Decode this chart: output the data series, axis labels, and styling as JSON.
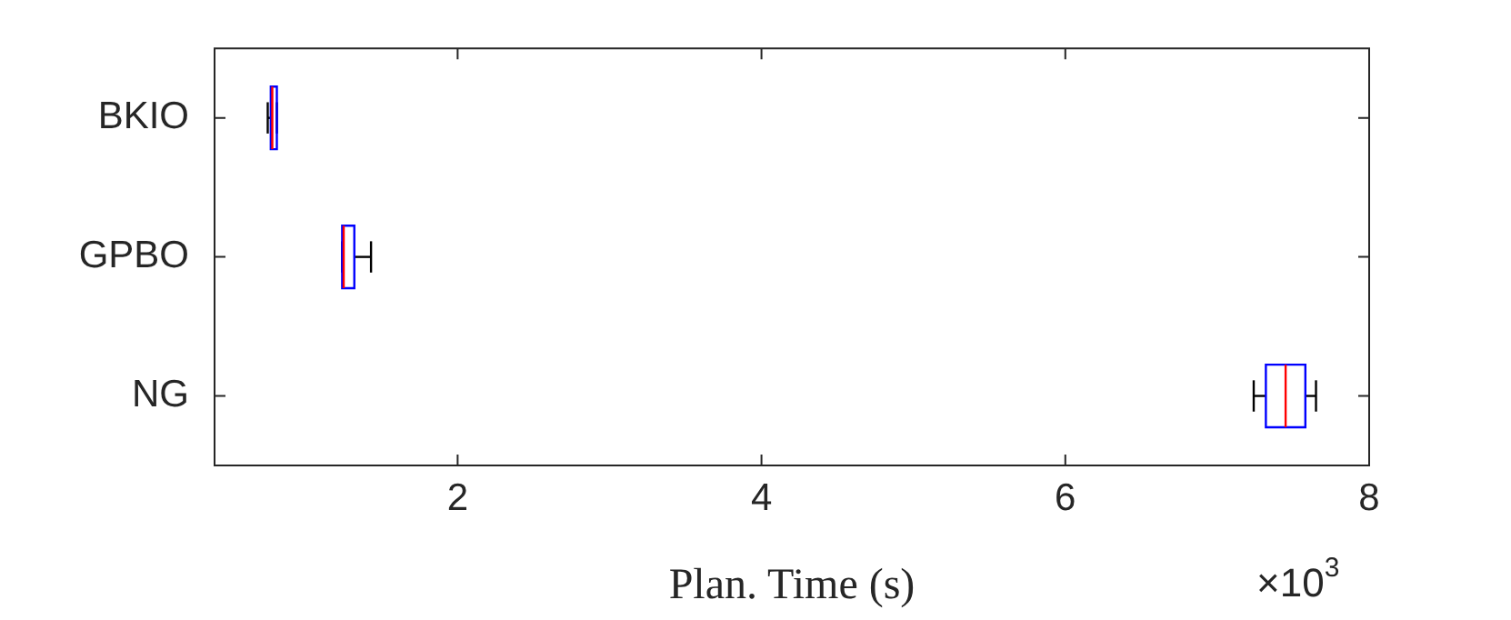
{
  "chart_data": {
    "type": "box",
    "orientation": "horizontal",
    "xlabel": "Plan. Time (s)",
    "categories": [
      "BKIO",
      "GPBO",
      "NG"
    ],
    "series": [
      {
        "color": "#0000ff",
        "boxes": [
          {
            "low": 0.75,
            "q1": 0.77,
            "median": 0.78,
            "q3": 0.81,
            "high": 0.81
          },
          {
            "low": 1.24,
            "q1": 1.24,
            "median": 1.25,
            "q3": 1.32,
            "high": 1.43
          },
          {
            "low": 7.24,
            "q1": 7.32,
            "median": 7.45,
            "q3": 7.58,
            "high": 7.65
          }
        ]
      }
    ],
    "xlim": [
      0.4,
      8
    ],
    "xticks": [
      2,
      4,
      6,
      8
    ],
    "grid": false,
    "legend": false,
    "annotations": [
      "×10$^{3}$"
    ]
  }
}
